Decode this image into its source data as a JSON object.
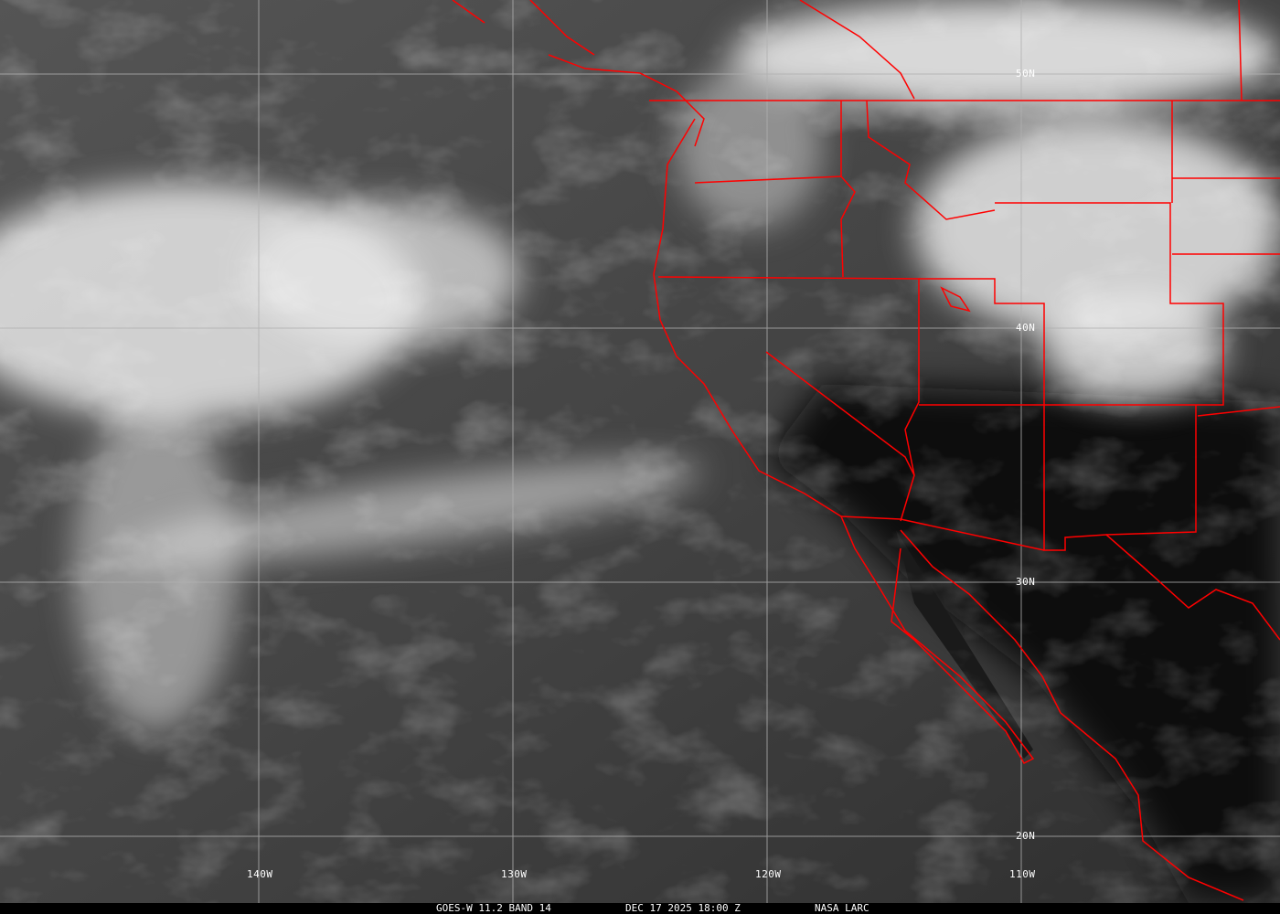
{
  "image": {
    "type": "satellite infrared image with map overlay",
    "colors": {
      "borders": "#ff0000",
      "grid": "#b0b0b0",
      "caption_bg": "#000000",
      "text": "#ffffff"
    }
  },
  "grid": {
    "longitude_labels": [
      "140W",
      "130W",
      "120W",
      "110W"
    ],
    "latitude_labels": [
      "50N",
      "40N",
      "30N",
      "20N"
    ]
  },
  "caption": {
    "product": "GOES-W 11.2 BAND 14",
    "datetime": "DEC 17 2025 18:00 Z",
    "source": "NASA LARC"
  }
}
